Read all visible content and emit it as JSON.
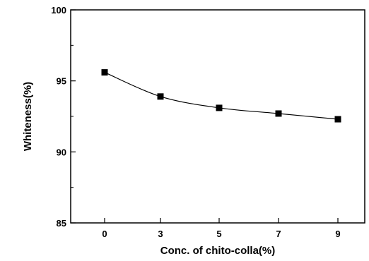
{
  "chart_data": {
    "type": "scatter",
    "title": "",
    "xlabel": "Conc. of chito-colla(%)",
    "ylabel": "Whiteness(%)",
    "categories": [
      "0",
      "3",
      "5",
      "7",
      "9"
    ],
    "ylim": [
      85,
      100
    ],
    "yticks": [
      "85",
      "90",
      "95",
      "100"
    ],
    "grid": false,
    "legend": "none",
    "series": [
      {
        "values": [
          95.6,
          93.9,
          93.1,
          92.7,
          92.3
        ],
        "marker": "square",
        "fit_curve": true
      }
    ],
    "colors": {
      "line": "#000000",
      "marker": "#000000"
    }
  }
}
